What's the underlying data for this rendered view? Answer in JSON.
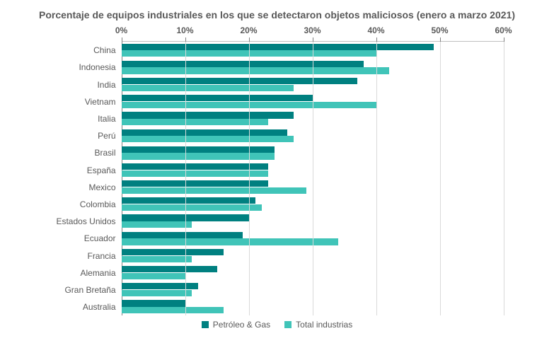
{
  "chart": {
    "type": "bar",
    "orientation": "horizontal",
    "title": "Porcentaje de equipos industriales en los que se detectaron objetos maliciosos (enero a marzo 2021)",
    "title_fontsize": 14,
    "title_color": "#595959",
    "x_axis": {
      "min": 0,
      "max": 60,
      "tick_step": 10,
      "tick_labels": [
        "0%",
        "10%",
        "20%",
        "30%",
        "40%",
        "50%",
        "60%"
      ],
      "label_fontsize": 12,
      "label_color": "#595959"
    },
    "categories": [
      "China",
      "Indonesia",
      "India",
      "Vietnam",
      "Italia",
      "Perú",
      "Brasil",
      "España",
      "Mexico",
      "Colombia",
      "Estados Unidos",
      "Ecuador",
      "Francia",
      "Alemania",
      "Gran Bretaña",
      "Australia"
    ],
    "category_fontsize": 12,
    "category_color": "#595959",
    "series": [
      {
        "name": "Petróleo & Gas",
        "color": "#008080",
        "values": [
          49,
          38,
          37,
          30,
          27,
          26,
          24,
          23,
          23,
          21,
          20,
          19,
          16,
          15,
          12,
          10
        ]
      },
      {
        "name": "Total industrias",
        "color": "#40c4b8",
        "values": [
          40,
          42,
          27,
          40,
          23,
          27,
          24,
          23,
          29,
          22,
          11,
          34,
          11,
          10,
          11,
          16
        ]
      }
    ],
    "background_color": "#ffffff",
    "grid_color": "#d9d9d9",
    "axis_line_color": "#808080",
    "legend_position": "bottom"
  }
}
